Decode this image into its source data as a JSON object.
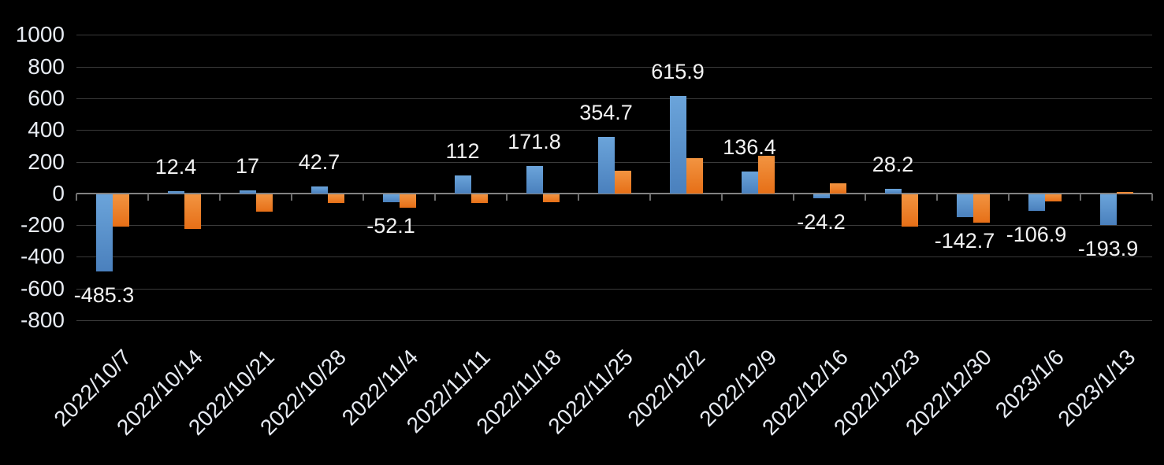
{
  "chart_data": {
    "type": "bar",
    "title": "",
    "legend": "none",
    "grid": true,
    "background_color": "#000000",
    "axis_text_color": "#e7ebf2",
    "data_label_color": "#f2f2f2",
    "gridline_color": "#3a3a3a",
    "axis_line_color": "#828282",
    "tick_color": "#6e6e6e",
    "ylim": [
      -800,
      1000
    ],
    "ytick_step": 200,
    "y_tick_labels": [
      "1000",
      "800",
      "600",
      "400",
      "200",
      "0",
      "-200",
      "-400",
      "-600",
      "-800"
    ],
    "categories": [
      "2022/10/7",
      "2022/10/14",
      "2022/10/21",
      "2022/10/28",
      "2022/11/4",
      "2022/11/11",
      "2022/11/18",
      "2022/11/25",
      "2022/12/2",
      "2022/12/9",
      "2022/12/16",
      "2022/12/23",
      "2022/12/30",
      "2023/1/6",
      "2023/1/13"
    ],
    "series": [
      {
        "name": "blue-series",
        "color": "#4e86c4",
        "color_gradient": [
          "#6ba4da",
          "#4a80bd"
        ],
        "values": [
          -485.3,
          12.4,
          17,
          42.7,
          -52.1,
          112,
          171.8,
          354.7,
          615.9,
          136.4,
          -24.2,
          28.2,
          -142.7,
          -106.9,
          -193.9
        ],
        "data_labels": [
          "-485.3",
          "12.4",
          "17",
          "42.7",
          "-52.1",
          "112",
          "171.8",
          "354.7",
          "615.9",
          "136.4",
          "-24.2",
          "28.2",
          "-142.7",
          "-106.9",
          "-193.9"
        ]
      },
      {
        "name": "orange-series",
        "color": "#ed7d31",
        "color_gradient": [
          "#f29441",
          "#e66f17"
        ],
        "values": [
          -205,
          -220,
          -110,
          -55,
          -85,
          -55,
          -50,
          145,
          222,
          238,
          65,
          -205,
          -180,
          -45,
          10
        ],
        "data_labels": null
      }
    ]
  }
}
